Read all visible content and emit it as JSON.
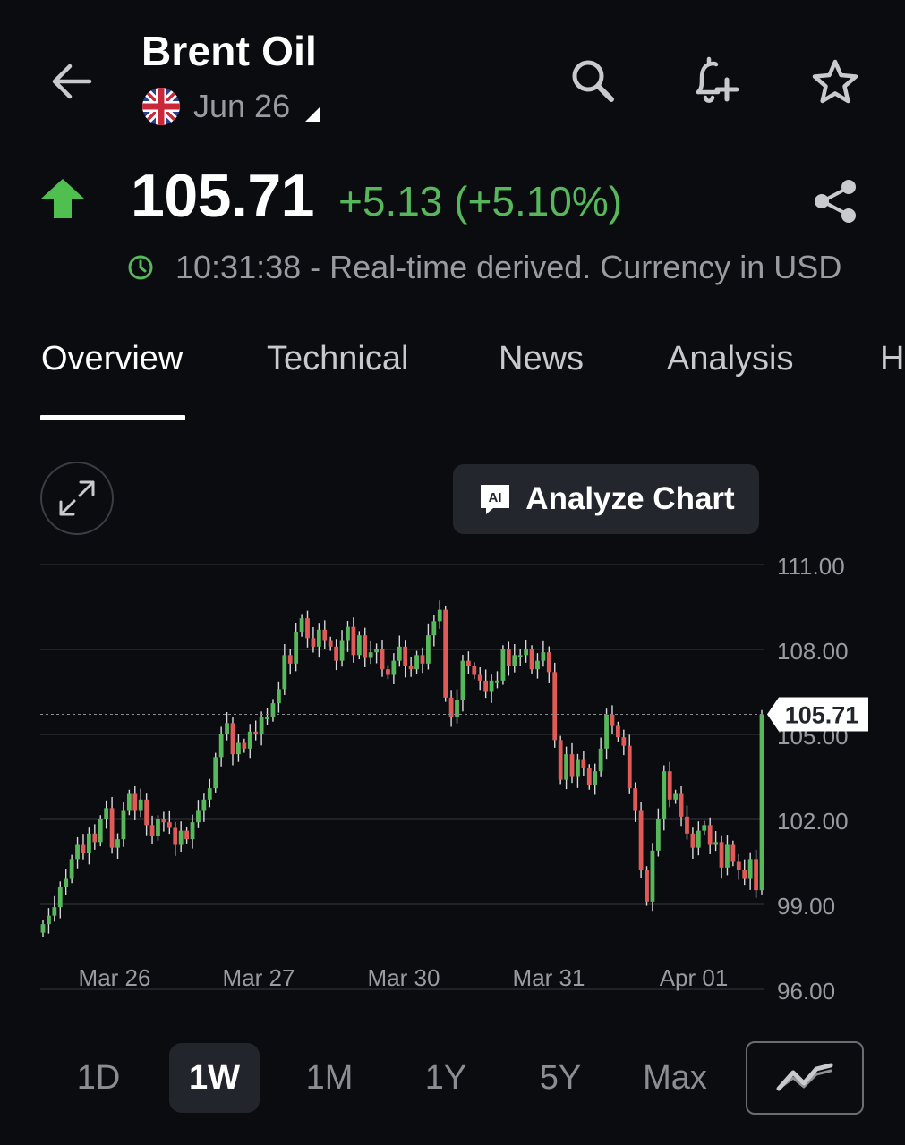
{
  "header": {
    "title": "Brent Oil",
    "expiry": "Jun 26",
    "icons": [
      "back-arrow-icon",
      "uk-flag-icon",
      "dropdown-triangle-icon",
      "search-icon",
      "add-alert-bell-icon",
      "star-icon",
      "share-icon"
    ]
  },
  "quote": {
    "direction": "up",
    "price": "105.71",
    "change": "+5.13 (+5.10%)",
    "status": "10:31:38 - Real-time derived. Currency in USD",
    "up_color": "#56b85b",
    "down_color": "#e05a57"
  },
  "tabs": [
    "Overview",
    "Technical",
    "News",
    "Analysis",
    "H"
  ],
  "active_tab": "Overview",
  "chart_toolbar": {
    "analyze_label": "Analyze Chart",
    "analyze_icon_text": "AI"
  },
  "chart_data": {
    "type": "candlestick",
    "x_labels": [
      "Mar 26",
      "Mar 27",
      "Mar 30",
      "Mar 31",
      "Apr 01"
    ],
    "y_ticks": [
      "111.00",
      "108.00",
      "105.00",
      "102.00",
      "99.00",
      "96.00"
    ],
    "ylim": [
      96,
      111
    ],
    "last_price_label": "105.71",
    "last_price": 105.71,
    "close_series": [
      98.3,
      98.6,
      98.9,
      99.6,
      99.9,
      100.6,
      101.1,
      100.8,
      101.5,
      101.2,
      102.0,
      102.4,
      101.0,
      101.3,
      102.3,
      102.9,
      102.3,
      102.7,
      101.8,
      101.4,
      102.0,
      101.9,
      101.7,
      101.1,
      101.6,
      101.3,
      101.9,
      102.3,
      102.7,
      103.1,
      104.2,
      105.0,
      105.4,
      104.3,
      104.7,
      104.5,
      105.1,
      105.0,
      105.6,
      105.6,
      106.1,
      106.6,
      107.8,
      107.5,
      108.6,
      109.1,
      108.4,
      108.1,
      108.7,
      108.3,
      108.1,
      107.6,
      108.3,
      108.8,
      107.8,
      108.5,
      107.7,
      107.9,
      108.0,
      107.3,
      107.1,
      107.6,
      108.1,
      107.4,
      107.3,
      107.8,
      107.5,
      108.5,
      109.0,
      109.4,
      106.3,
      105.6,
      106.2,
      107.6,
      107.4,
      107.1,
      106.9,
      106.5,
      106.9,
      106.9,
      108.0,
      107.4,
      107.8,
      107.8,
      108.0,
      107.3,
      107.6,
      107.9,
      107.2,
      104.8,
      103.4,
      104.3,
      103.5,
      104.1,
      103.8,
      103.2,
      103.7,
      104.5,
      105.7,
      105.3,
      104.9,
      104.6,
      103.1,
      102.3,
      100.2,
      99.1,
      100.9,
      102.0,
      103.7,
      102.7,
      102.9,
      102.1,
      101.5,
      101.0,
      101.6,
      101.8,
      101.1,
      101.2,
      100.3,
      101.1,
      100.5,
      100.2,
      99.9,
      100.6,
      99.5,
      105.71
    ]
  },
  "range_selector": {
    "options": [
      "1D",
      "1W",
      "1M",
      "1Y",
      "5Y",
      "Max"
    ],
    "active": "1W",
    "chart_type_icon": "line-chart-icon"
  }
}
